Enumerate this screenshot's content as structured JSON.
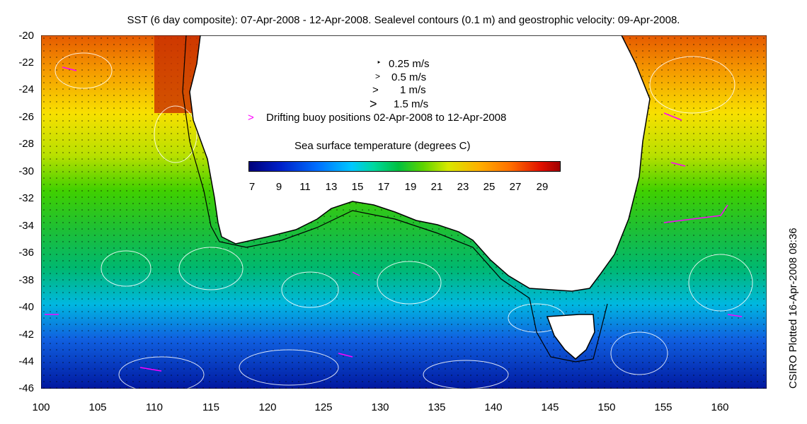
{
  "title": "SST (6 day composite): 07-Apr-2008 - 12-Apr-2008. Sealevel contours (0.1 m) and geostrophic velocity: 09-Apr-2008.",
  "credit": "CSIRO Plotted 16-Apr-2008 08:36",
  "y_ticks": [
    "-20",
    "-22",
    "-24",
    "-26",
    "-28",
    "-30",
    "-32",
    "-34",
    "-36",
    "-38",
    "-40",
    "-42",
    "-44",
    "-46"
  ],
  "x_ticks": [
    "100",
    "105",
    "110",
    "115",
    "120",
    "125",
    "130",
    "135",
    "140",
    "145",
    "150",
    "155",
    "160"
  ],
  "velocity_legend": {
    "v1": "0.25 m/s",
    "v2": "0.5 m/s",
    "v3": "1 m/s",
    "v4": "1.5 m/s"
  },
  "buoy_legend": "Drifting buoy positions 02-Apr-2008 to 12-Apr-2008",
  "colorbar": {
    "title": "Sea surface temperature (degrees C)",
    "ticks": [
      "7",
      "9",
      "11",
      "13",
      "15",
      "17",
      "19",
      "21",
      "23",
      "25",
      "27",
      "29"
    ]
  },
  "colors": {
    "buoy": "#ff00ff",
    "contour": "#ffffff",
    "land": "#ffffff"
  }
}
